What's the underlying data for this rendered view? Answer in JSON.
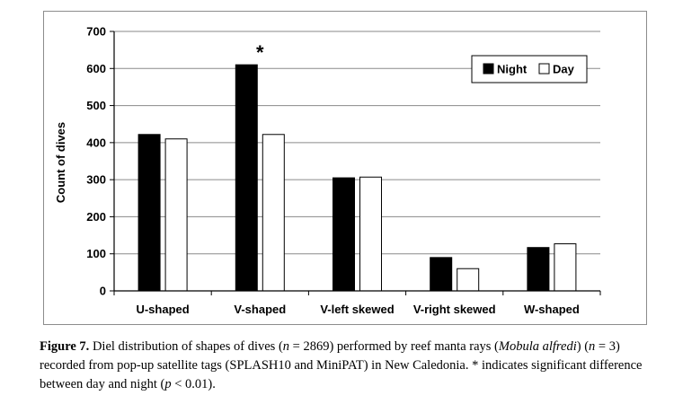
{
  "chart_data": {
    "type": "bar",
    "ylabel": "Count of dives",
    "xlabel": "",
    "ylim": [
      0,
      700
    ],
    "yticks": [
      0,
      100,
      200,
      300,
      400,
      500,
      600,
      700
    ],
    "categories": [
      "U-shaped",
      "V-shaped",
      "V-left skewed",
      "V-right skewed",
      "W-shaped"
    ],
    "series": [
      {
        "name": "Night",
        "color": "#000000",
        "values": [
          422,
          610,
          305,
          90,
          117
        ]
      },
      {
        "name": "Day",
        "color": "#ffffff",
        "values": [
          410,
          422,
          307,
          60,
          127
        ]
      }
    ],
    "legend_position": "top-right",
    "annotations": [
      {
        "text": "*",
        "category": "V-shaped",
        "series": "Night"
      }
    ]
  },
  "caption": {
    "label": "Figure 7.",
    "part1": " Diel distribution of shapes of dives (",
    "n_var": "n",
    "part2": " = 2869) performed by reef manta rays (",
    "species": "Mobula alfredi",
    "part3": ") (",
    "n_var2": "n",
    "part4": " = 3) recorded from pop-up satellite tags (SPLASH10 and MiniPAT) in New Caledonia. * indicates significant difference between day and night (",
    "p_var": "p",
    "part5": " < 0.01)."
  }
}
